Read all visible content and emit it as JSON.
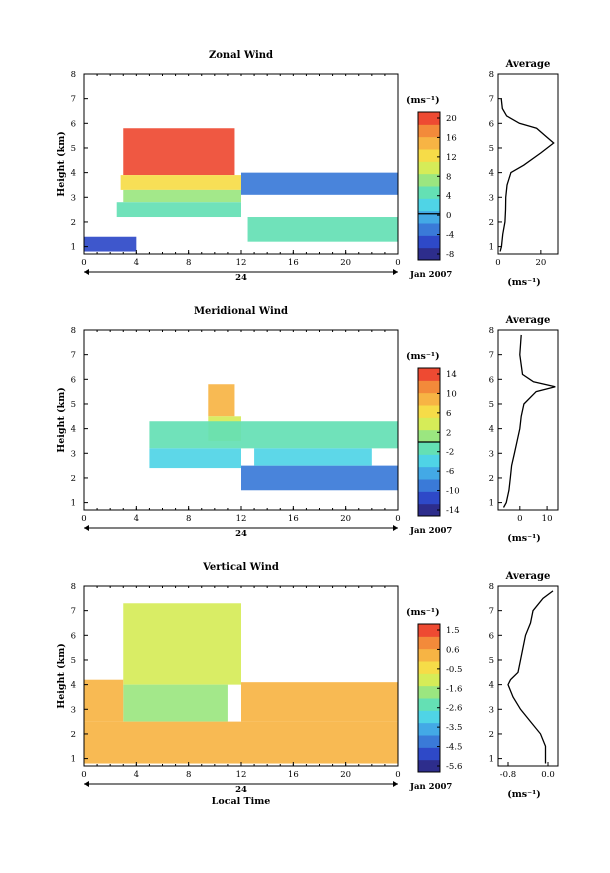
{
  "chart_data": [
    {
      "type": "heatmap",
      "title": "Zonal Wind",
      "ylabel": "Height (km)",
      "xticks": [
        "0",
        "4",
        "8",
        "12",
        "16",
        "20",
        "0"
      ],
      "yticks": [
        "1",
        "2",
        "3",
        "4",
        "5",
        "6",
        "7",
        "8"
      ],
      "day_label": "24",
      "date_label": "Jan 2007",
      "xlim": [
        0,
        24
      ],
      "ylim": [
        0.7,
        8
      ],
      "colorbar": {
        "unit": "(ms⁻¹)",
        "ticks": [
          "20",
          "16",
          "12",
          "8",
          "4",
          "0",
          "-4",
          "-8"
        ],
        "range": [
          -10,
          22
        ],
        "zero_line": 0
      },
      "regions": [
        {
          "x": [
            3,
            11.5
          ],
          "y": [
            3.9,
            5.8
          ],
          "value": 21
        },
        {
          "x": [
            2.8,
            12
          ],
          "y": [
            3.3,
            3.9
          ],
          "value": 13
        },
        {
          "x": [
            3,
            12
          ],
          "y": [
            2.8,
            3.3
          ],
          "value": 8
        },
        {
          "x": [
            2.5,
            12
          ],
          "y": [
            2.2,
            2.8
          ],
          "value": 5
        },
        {
          "x": [
            12,
            24
          ],
          "y": [
            3.1,
            4
          ],
          "value": -3
        },
        {
          "x": [
            12.5,
            24
          ],
          "y": [
            1.2,
            2.2
          ],
          "value": 5
        },
        {
          "x": [
            0,
            4
          ],
          "y": [
            0.8,
            1.4
          ],
          "value": -6
        }
      ],
      "average": {
        "title": "Average",
        "xticks": [
          "0",
          "20"
        ],
        "xlim": [
          0,
          28
        ],
        "xlabel": "(ms⁻¹)",
        "profile": [
          [
            0.8,
            1
          ],
          [
            1,
            1.6
          ],
          [
            1.5,
            2.2
          ],
          [
            2,
            3.2
          ],
          [
            2.5,
            3.5
          ],
          [
            3,
            3.6
          ],
          [
            3.5,
            4.2
          ],
          [
            4,
            6
          ],
          [
            4.3,
            12
          ],
          [
            4.8,
            20
          ],
          [
            5.2,
            26
          ],
          [
            5.5,
            22
          ],
          [
            5.8,
            18
          ],
          [
            6,
            10
          ],
          [
            6.3,
            4
          ],
          [
            6.6,
            2
          ],
          [
            7,
            1.5
          ]
        ]
      }
    },
    {
      "type": "heatmap",
      "title": "Meridional Wind",
      "ylabel": "Height (km)",
      "xticks": [
        "0",
        "4",
        "8",
        "12",
        "16",
        "20",
        "0"
      ],
      "yticks": [
        "1",
        "2",
        "3",
        "4",
        "5",
        "6",
        "7",
        "8"
      ],
      "day_label": "24",
      "date_label": "Jan 2007",
      "xlim": [
        0,
        24
      ],
      "ylim": [
        0.7,
        8
      ],
      "colorbar": {
        "unit": "(ms⁻¹)",
        "ticks": [
          "14",
          "10",
          "6",
          "2",
          "-2",
          "-6",
          "-10",
          "-14"
        ],
        "range": [
          -16,
          16
        ],
        "zero_line": 0
      },
      "regions": [
        {
          "x": [
            9.5,
            11.5
          ],
          "y": [
            4.5,
            5.8
          ],
          "value": 10
        },
        {
          "x": [
            9.5,
            12
          ],
          "y": [
            3.5,
            4.5
          ],
          "value": 4
        },
        {
          "x": [
            5,
            24
          ],
          "y": [
            3.2,
            4.3
          ],
          "value": -1
        },
        {
          "x": [
            5,
            12
          ],
          "y": [
            2.4,
            3.2
          ],
          "value": -4
        },
        {
          "x": [
            12,
            24
          ],
          "y": [
            1.5,
            2.5
          ],
          "value": -9
        },
        {
          "x": [
            13,
            22
          ],
          "y": [
            2.5,
            3.2
          ],
          "value": -5
        }
      ],
      "average": {
        "title": "Average",
        "xticks": [
          "0",
          "10"
        ],
        "xlim": [
          -8,
          14
        ],
        "xlabel": "(ms⁻¹)",
        "profile": [
          [
            0.8,
            -6
          ],
          [
            1,
            -5
          ],
          [
            1.5,
            -4
          ],
          [
            2,
            -3.5
          ],
          [
            2.5,
            -3
          ],
          [
            3,
            -2
          ],
          [
            3.5,
            -1
          ],
          [
            4,
            0
          ],
          [
            4.5,
            0.5
          ],
          [
            5,
            1.5
          ],
          [
            5.5,
            6
          ],
          [
            5.7,
            13
          ],
          [
            5.9,
            5
          ],
          [
            6.2,
            1
          ],
          [
            7,
            0
          ],
          [
            7.8,
            0.5
          ]
        ]
      }
    },
    {
      "type": "heatmap",
      "title": "Vertical Wind",
      "ylabel": "Height (km)",
      "xlabel": "Local Time",
      "xticks": [
        "0",
        "4",
        "8",
        "12",
        "16",
        "20",
        "0"
      ],
      "yticks": [
        "1",
        "2",
        "3",
        "4",
        "5",
        "6",
        "7",
        "8"
      ],
      "day_label": "24",
      "date_label": "Jan 2007",
      "xlim": [
        0,
        24
      ],
      "ylim": [
        0.7,
        8
      ],
      "colorbar": {
        "unit": "(ms⁻¹)",
        "ticks": [
          "1.5",
          "0.6",
          "-0.5",
          "-1.6",
          "-2.6",
          "-3.5",
          "-4.5",
          "-5.6"
        ],
        "range": [
          -6,
          2
        ],
        "zero_line": null
      },
      "regions": [
        {
          "x": [
            3,
            12
          ],
          "y": [
            4,
            7.3
          ],
          "value": -0.9
        },
        {
          "x": [
            3,
            11
          ],
          "y": [
            2.5,
            4
          ],
          "value": -1.6
        },
        {
          "x": [
            0,
            24
          ],
          "y": [
            0.8,
            2.5
          ],
          "value": 0.1
        },
        {
          "x": [
            0,
            3
          ],
          "y": [
            2.5,
            4.2
          ],
          "value": 0.2
        },
        {
          "x": [
            12,
            24
          ],
          "y": [
            2.5,
            4.1
          ],
          "value": 0.3
        }
      ],
      "average": {
        "title": "Average",
        "xticks": [
          "-0.8",
          "0.0"
        ],
        "xlim": [
          -1,
          0.2
        ],
        "xlabel": "(ms⁻¹)",
        "profile": [
          [
            0.8,
            -0.05
          ],
          [
            1,
            -0.05
          ],
          [
            1.5,
            -0.05
          ],
          [
            2,
            -0.15
          ],
          [
            2.5,
            -0.35
          ],
          [
            3,
            -0.55
          ],
          [
            3.5,
            -0.7
          ],
          [
            4,
            -0.8
          ],
          [
            4.2,
            -0.75
          ],
          [
            4.5,
            -0.6
          ],
          [
            5,
            -0.55
          ],
          [
            5.5,
            -0.5
          ],
          [
            6,
            -0.45
          ],
          [
            6.5,
            -0.35
          ],
          [
            7,
            -0.3
          ],
          [
            7.5,
            -0.1
          ],
          [
            7.8,
            0.1
          ]
        ]
      }
    }
  ],
  "colors": {
    "colormap": [
      "#2d2d8c",
      "#2e49c8",
      "#3a7ad8",
      "#43a9e6",
      "#4fd4e6",
      "#64e0b4",
      "#9be680",
      "#d6ec58",
      "#f6dc48",
      "#f7b444",
      "#f38a3a",
      "#ee4a32"
    ]
  }
}
